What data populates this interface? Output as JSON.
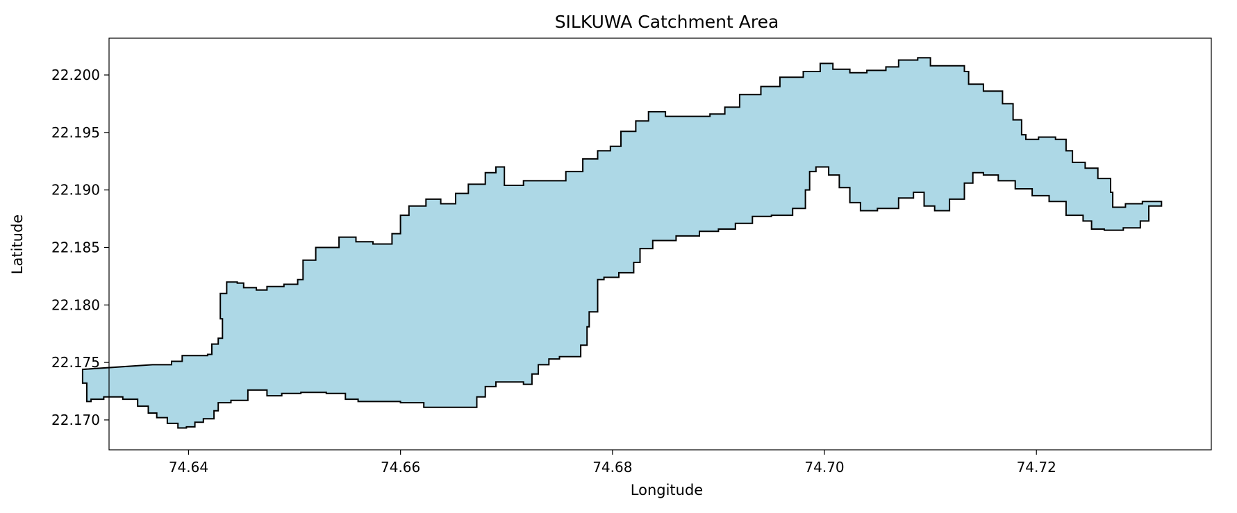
{
  "figure": {
    "title": "SILKUWA Catchment Area",
    "xlabel": "Longitude",
    "ylabel": "Latitude"
  },
  "chart_data": {
    "type": "map",
    "title": "SILKUWA Catchment Area",
    "xlabel": "Longitude",
    "ylabel": "Latitude",
    "xlim": [
      74.6325,
      74.7365
    ],
    "ylim": [
      22.1674,
      22.2032
    ],
    "x_ticks": [
      74.64,
      74.66,
      74.68,
      74.7,
      74.72
    ],
    "x_tick_labels": [
      "74.64",
      "74.66",
      "74.68",
      "74.70",
      "74.72"
    ],
    "y_ticks": [
      22.17,
      22.175,
      22.18,
      22.185,
      22.19,
      22.195,
      22.2
    ],
    "y_tick_labels": [
      "22.170",
      "22.175",
      "22.180",
      "22.185",
      "22.190",
      "22.195",
      "22.200"
    ],
    "grid": false,
    "legend": "none",
    "polygon_name": "SILKUWA",
    "fill_color": "#add8e6",
    "edge_color": "#000000",
    "boundary_lonlat": [
      [
        74.6366,
        22.1748
      ],
      [
        74.6384,
        22.1751
      ],
      [
        74.6394,
        22.1756
      ],
      [
        74.6418,
        22.1757
      ],
      [
        74.6422,
        22.1766
      ],
      [
        74.6428,
        22.1771
      ],
      [
        74.6432,
        22.1788
      ],
      [
        74.643,
        22.181
      ],
      [
        74.6436,
        22.182
      ],
      [
        74.6446,
        22.1819
      ],
      [
        74.6452,
        22.1815
      ],
      [
        74.6464,
        22.1813
      ],
      [
        74.6474,
        22.1816
      ],
      [
        74.649,
        22.1818
      ],
      [
        74.6503,
        22.1822
      ],
      [
        74.6508,
        22.1839
      ],
      [
        74.652,
        22.185
      ],
      [
        74.6542,
        22.1859
      ],
      [
        74.6558,
        22.1855
      ],
      [
        74.6574,
        22.1853
      ],
      [
        74.6592,
        22.1862
      ],
      [
        74.66,
        22.1878
      ],
      [
        74.6608,
        22.1886
      ],
      [
        74.6624,
        22.1892
      ],
      [
        74.6638,
        22.1888
      ],
      [
        74.6652,
        22.1897
      ],
      [
        74.6664,
        22.1905
      ],
      [
        74.668,
        22.1915
      ],
      [
        74.669,
        22.192
      ],
      [
        74.6698,
        22.1904
      ],
      [
        74.6716,
        22.1908
      ],
      [
        74.6738,
        22.1908
      ],
      [
        74.6756,
        22.1916
      ],
      [
        74.6772,
        22.1927
      ],
      [
        74.6786,
        22.1934
      ],
      [
        74.6798,
        22.1938
      ],
      [
        74.6808,
        22.1951
      ],
      [
        74.6822,
        22.196
      ],
      [
        74.6834,
        22.1968
      ],
      [
        74.685,
        22.1964
      ],
      [
        74.687,
        22.1964
      ],
      [
        74.6892,
        22.1966
      ],
      [
        74.6906,
        22.1972
      ],
      [
        74.692,
        22.1983
      ],
      [
        74.694,
        22.199
      ],
      [
        74.6958,
        22.1998
      ],
      [
        74.698,
        22.2003
      ],
      [
        74.6996,
        22.201
      ],
      [
        74.7008,
        22.2005
      ],
      [
        74.7024,
        22.2002
      ],
      [
        74.704,
        22.2004
      ],
      [
        74.7058,
        22.2007
      ],
      [
        74.707,
        22.2013
      ],
      [
        74.7088,
        22.2015
      ],
      [
        74.71,
        22.2008
      ],
      [
        74.7118,
        22.2008
      ],
      [
        74.7132,
        22.2003
      ],
      [
        74.7136,
        22.1992
      ],
      [
        74.715,
        22.1986
      ],
      [
        74.7168,
        22.1975
      ],
      [
        74.7178,
        22.1961
      ],
      [
        74.7186,
        22.1948
      ],
      [
        74.719,
        22.1944
      ],
      [
        74.7202,
        22.1946
      ],
      [
        74.7218,
        22.1944
      ],
      [
        74.7228,
        22.1934
      ],
      [
        74.7234,
        22.1924
      ],
      [
        74.7246,
        22.1919
      ],
      [
        74.7258,
        22.191
      ],
      [
        74.727,
        22.1898
      ],
      [
        74.7272,
        22.1885
      ],
      [
        74.7284,
        22.1888
      ],
      [
        74.73,
        22.189
      ],
      [
        74.7318,
        22.1886
      ],
      [
        74.7306,
        22.1873
      ],
      [
        74.7298,
        22.1867
      ],
      [
        74.7282,
        22.1865
      ],
      [
        74.7264,
        22.1866
      ],
      [
        74.7252,
        22.1873
      ],
      [
        74.7244,
        22.1878
      ],
      [
        74.7228,
        22.189
      ],
      [
        74.7212,
        22.1895
      ],
      [
        74.7196,
        22.1901
      ],
      [
        74.718,
        22.1908
      ],
      [
        74.7164,
        22.1913
      ],
      [
        74.715,
        22.1915
      ],
      [
        74.714,
        22.1906
      ],
      [
        74.7132,
        22.1892
      ],
      [
        74.7118,
        22.1882
      ],
      [
        74.7104,
        22.1886
      ],
      [
        74.7094,
        22.1898
      ],
      [
        74.7084,
        22.1893
      ],
      [
        74.707,
        22.1884
      ],
      [
        74.705,
        22.1882
      ],
      [
        74.7034,
        22.1889
      ],
      [
        74.7024,
        22.1902
      ],
      [
        74.7014,
        22.1913
      ],
      [
        74.7004,
        22.192
      ],
      [
        74.6992,
        22.1916
      ],
      [
        74.6986,
        22.19
      ],
      [
        74.6982,
        22.1884
      ],
      [
        74.697,
        22.1878
      ],
      [
        74.695,
        22.1877
      ],
      [
        74.6932,
        22.1871
      ],
      [
        74.6916,
        22.1866
      ],
      [
        74.69,
        22.1864
      ],
      [
        74.6882,
        22.186
      ],
      [
        74.686,
        22.1856
      ],
      [
        74.6838,
        22.1849
      ],
      [
        74.6826,
        22.1837
      ],
      [
        74.682,
        22.1828
      ],
      [
        74.6806,
        22.1824
      ],
      [
        74.6792,
        22.1822
      ],
      [
        74.6786,
        22.1806
      ],
      [
        74.6786,
        22.1794
      ],
      [
        74.6778,
        22.1781
      ],
      [
        74.6776,
        22.1765
      ],
      [
        74.677,
        22.1755
      ],
      [
        74.675,
        22.1753
      ],
      [
        74.674,
        22.1748
      ],
      [
        74.673,
        22.174
      ],
      [
        74.6724,
        22.1731
      ],
      [
        74.6716,
        22.1733
      ],
      [
        74.67,
        22.1733
      ],
      [
        74.669,
        22.1729
      ],
      [
        74.668,
        22.172
      ],
      [
        74.6672,
        22.1711
      ],
      [
        74.6646,
        22.1711
      ],
      [
        74.6622,
        22.1715
      ],
      [
        74.66,
        22.1716
      ],
      [
        74.6578,
        22.1716
      ],
      [
        74.656,
        22.1718
      ],
      [
        74.6548,
        22.1723
      ],
      [
        74.653,
        22.1724
      ],
      [
        74.6506,
        22.1723
      ],
      [
        74.6488,
        22.1721
      ],
      [
        74.6474,
        22.1726
      ],
      [
        74.6466,
        22.1726
      ],
      [
        74.6456,
        22.1717
      ],
      [
        74.644,
        22.1715
      ],
      [
        74.6428,
        22.1708
      ],
      [
        74.6424,
        22.1701
      ],
      [
        74.6414,
        22.1698
      ],
      [
        74.6406,
        22.1694
      ],
      [
        74.6398,
        22.1693
      ],
      [
        74.639,
        22.1697
      ],
      [
        74.638,
        22.1702
      ],
      [
        74.637,
        22.1706
      ],
      [
        74.6362,
        22.1712
      ],
      [
        74.6352,
        22.1718
      ],
      [
        74.6338,
        22.172
      ],
      [
        74.632,
        22.1718
      ],
      [
        74.6308,
        22.1716
      ],
      [
        74.6304,
        22.1732
      ],
      [
        74.63,
        22.1744
      ]
    ]
  }
}
